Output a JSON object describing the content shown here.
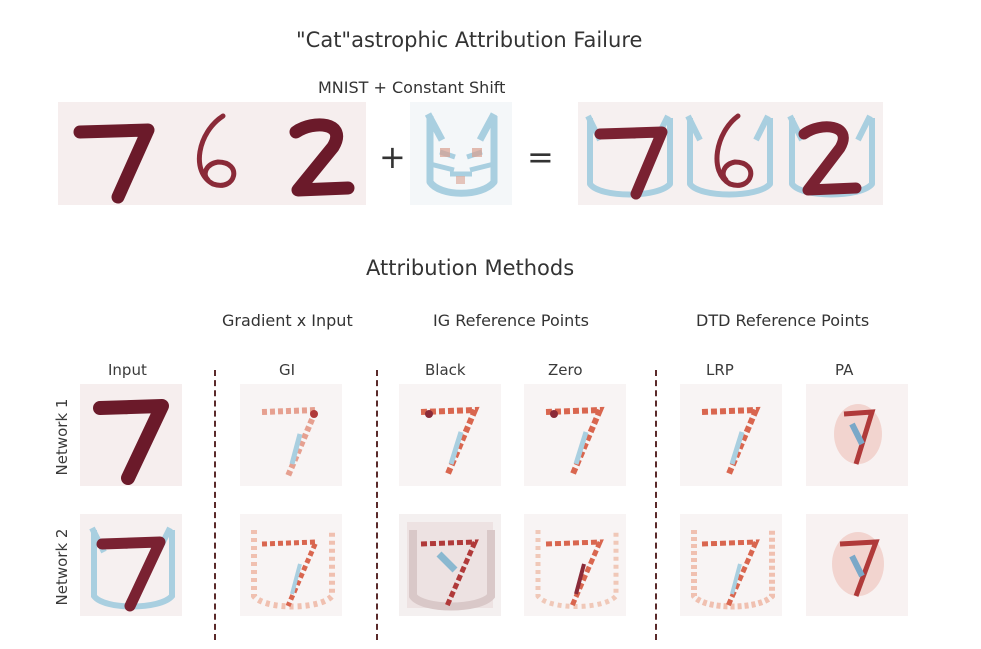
{
  "title": "\"Cat\"astrophic Attribution Failure",
  "top_subtitle": "MNIST + Constant Shift",
  "operators": {
    "plus": "+",
    "equals": "="
  },
  "digits": [
    "7",
    "6",
    "2"
  ],
  "section_title": "Attribution Methods",
  "groups": {
    "gxi": "Gradient x Input",
    "ig": "IG Reference Points",
    "dtd": "DTD Reference Points"
  },
  "columns": {
    "input": "Input",
    "gi": "GI",
    "black": "Black",
    "zero": "Zero",
    "lrp": "LRP",
    "pa": "PA"
  },
  "rows": {
    "net1": "Network 1",
    "net2": "Network 2"
  },
  "colors": {
    "digit": "#6b1a2a",
    "red": "#d9664f",
    "blue": "#a9cfe0",
    "tile_bg": "#f6eeee"
  }
}
